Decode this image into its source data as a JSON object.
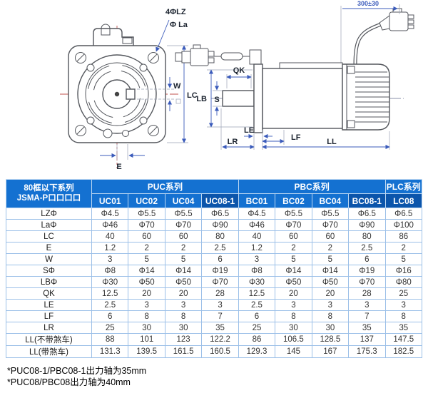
{
  "diagram": {
    "front": {
      "label_bolt": "4ΦLZ",
      "label_pilot": "Φ La",
      "label_w": "W",
      "label_lc": "LC",
      "label_e": "E"
    },
    "side": {
      "label_qk": "QK",
      "label_lb": "LB",
      "label_s": "S",
      "label_le": "LE",
      "label_lr": "LR",
      "label_lf": "LF",
      "label_ll": "LL",
      "label_cable": "300±30"
    }
  },
  "table": {
    "corner": {
      "line1": "80框以下系列",
      "line2": "JSMA-P口口口口"
    },
    "groups": [
      {
        "label": "PUC系列"
      },
      {
        "label": "PBC系列"
      },
      {
        "label": "PLC系列"
      }
    ],
    "columns": [
      "UC01",
      "UC02",
      "UC04",
      "UC08-1",
      "BC01",
      "BC02",
      "BC04",
      "BC08-1",
      "LC08"
    ],
    "highlight_columns": [
      3,
      7,
      8
    ],
    "rows": [
      {
        "label": "LZΦ",
        "values": [
          "Φ4.5",
          "Φ5.5",
          "Φ5.5",
          "Φ6.5",
          "Φ4.5",
          "Φ5.5",
          "Φ5.5",
          "Φ6.5",
          "Φ6.5"
        ]
      },
      {
        "label": "LaΦ",
        "values": [
          "Φ46",
          "Φ70",
          "Φ70",
          "Φ90",
          "Φ46",
          "Φ70",
          "Φ70",
          "Φ90",
          "Φ100"
        ]
      },
      {
        "label": "LC",
        "values": [
          "40",
          "60",
          "60",
          "80",
          "40",
          "60",
          "60",
          "80",
          "86"
        ]
      },
      {
        "label": "E",
        "values": [
          "1.2",
          "2",
          "2",
          "2.5",
          "1.2",
          "2",
          "2",
          "2.5",
          "2"
        ]
      },
      {
        "label": "W",
        "values": [
          "3",
          "5",
          "5",
          "6",
          "3",
          "5",
          "5",
          "6",
          "5"
        ]
      },
      {
        "label": "SΦ",
        "values": [
          "Φ8",
          "Φ14",
          "Φ14",
          "Φ19",
          "Φ8",
          "Φ14",
          "Φ14",
          "Φ19",
          "Φ16"
        ]
      },
      {
        "label": "LBΦ",
        "values": [
          "Φ30",
          "Φ50",
          "Φ50",
          "Φ70",
          "Φ30",
          "Φ50",
          "Φ50",
          "Φ70",
          "Φ80"
        ]
      },
      {
        "label": "QK",
        "values": [
          "12.5",
          "20",
          "20",
          "28",
          "12.5",
          "20",
          "20",
          "28",
          "25"
        ]
      },
      {
        "label": "LE",
        "values": [
          "2.5",
          "3",
          "3",
          "3",
          "2.5",
          "3",
          "3",
          "3",
          "3"
        ]
      },
      {
        "label": "LF",
        "values": [
          "6",
          "8",
          "8",
          "7",
          "6",
          "8",
          "8",
          "7",
          "8"
        ]
      },
      {
        "label": "LR",
        "values": [
          "25",
          "30",
          "30",
          "35",
          "25",
          "30",
          "30",
          "35",
          "35"
        ]
      },
      {
        "label": "LL(不带煞车)",
        "values": [
          "88",
          "101",
          "123",
          "122.2",
          "86",
          "106.5",
          "128.5",
          "137",
          "147.5"
        ]
      },
      {
        "label": "LL(带煞车)",
        "values": [
          "131.3",
          "139.5",
          "161.5",
          "160.5",
          "129.3",
          "145",
          "167",
          "175.3",
          "182.5"
        ]
      }
    ]
  },
  "footnotes": [
    "*PUC08-1/PBC08-1出力轴为35mm",
    "*PUC08/PBC08出力轴为40mm"
  ],
  "colors": {
    "header_blue": "#1471d1",
    "header_dark": "#0b55ab",
    "grid_line": "#9cc0e8",
    "table_border": "#4c8ed6",
    "dimension_blue": "#3b5bbb",
    "centerline_red": "#c0504d",
    "drawing_gray": "#53565c"
  }
}
